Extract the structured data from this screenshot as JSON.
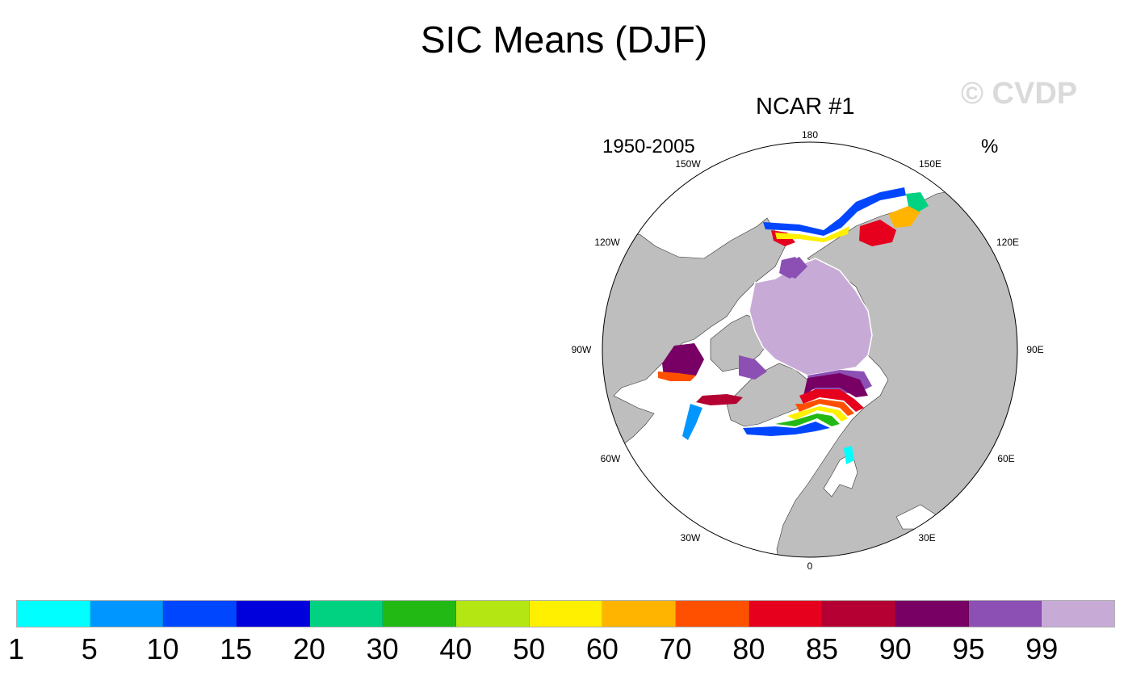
{
  "title": "SIC Means (DJF)",
  "watermark": "© CVDP",
  "subtitle": "NCAR #1",
  "period": "1950-2005",
  "units": "%",
  "longitude_labels": [
    "180",
    "150E",
    "120E",
    "90E",
    "60E",
    "30E",
    "0",
    "30W",
    "60W",
    "90W",
    "120W",
    "150W"
  ],
  "colorbar": {
    "colors": [
      "#00ffff",
      "#0096ff",
      "#0046ff",
      "#0000dc",
      "#00d282",
      "#23b914",
      "#b4e614",
      "#fff000",
      "#ffb400",
      "#ff5000",
      "#e6001e",
      "#b40032",
      "#780064",
      "#8c50b4",
      "#c8aad7"
    ],
    "labels": [
      "1",
      "5",
      "10",
      "15",
      "20",
      "30",
      "40",
      "50",
      "60",
      "70",
      "80",
      "85",
      "90",
      "95",
      "99"
    ]
  },
  "colors": {
    "land": "#bebebe",
    "ocean": "#ffffff",
    "sea_ice_max": "#c8aad7"
  }
}
